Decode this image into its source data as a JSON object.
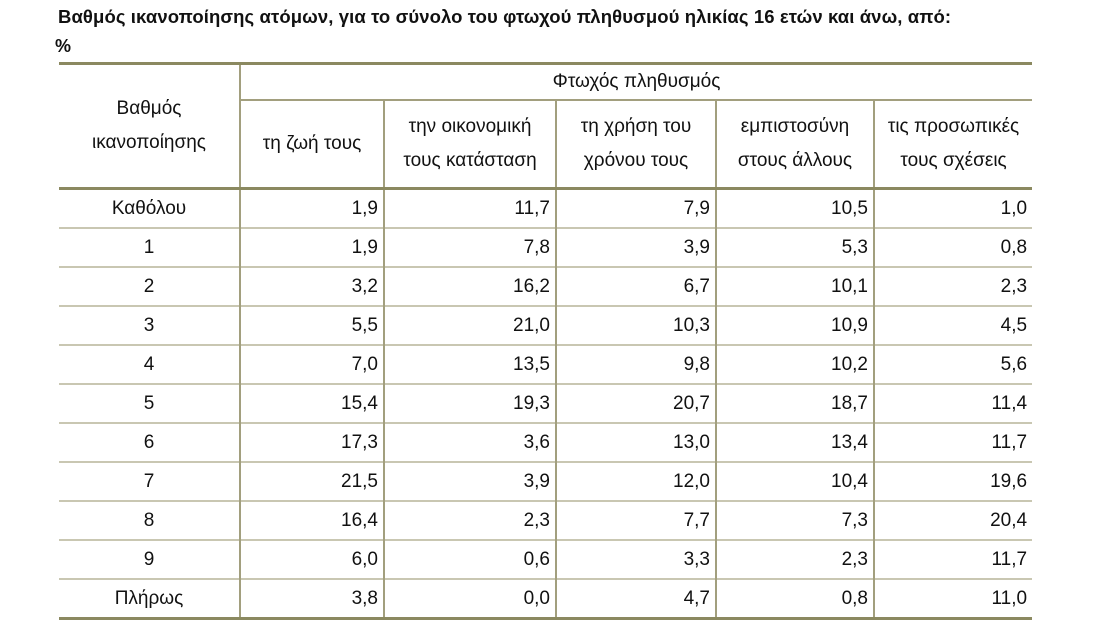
{
  "title": "Βαθμός ικανοποίησης ατόμων, για το σύνολο του φτωχού πληθυσμού ηλικίας 16 ετών και άνω, από:",
  "unit": "%",
  "table": {
    "row_header": "Βαθμός ικανοποίησης",
    "group_header": "Φτωχός πληθυσμός",
    "columns": [
      "τη ζωή τους",
      "την οικονομική τους κατάσταση",
      "τη χρήση του χρόνου τους",
      "εμπιστοσύνη στους άλλους",
      "τις προσωπικές τους σχέσεις"
    ],
    "rows": [
      {
        "label": "Καθόλου",
        "values": [
          "1,9",
          "11,7",
          "7,9",
          "10,5",
          "1,0"
        ]
      },
      {
        "label": "1",
        "values": [
          "1,9",
          "7,8",
          "3,9",
          "5,3",
          "0,8"
        ]
      },
      {
        "label": "2",
        "values": [
          "3,2",
          "16,2",
          "6,7",
          "10,1",
          "2,3"
        ]
      },
      {
        "label": "3",
        "values": [
          "5,5",
          "21,0",
          "10,3",
          "10,9",
          "4,5"
        ]
      },
      {
        "label": "4",
        "values": [
          "7,0",
          "13,5",
          "9,8",
          "10,2",
          "5,6"
        ]
      },
      {
        "label": "5",
        "values": [
          "15,4",
          "19,3",
          "20,7",
          "18,7",
          "11,4"
        ]
      },
      {
        "label": "6",
        "values": [
          "17,3",
          "3,6",
          "13,0",
          "13,4",
          "11,7"
        ]
      },
      {
        "label": "7",
        "values": [
          "21,5",
          "3,9",
          "12,0",
          "10,4",
          "19,6"
        ]
      },
      {
        "label": "8",
        "values": [
          "16,4",
          "2,3",
          "7,7",
          "7,3",
          "20,4"
        ]
      },
      {
        "label": "9",
        "values": [
          "6,0",
          "0,6",
          "3,3",
          "2,3",
          "11,7"
        ]
      },
      {
        "label": "Πλήρως",
        "values": [
          "3,8",
          "0,0",
          "4,7",
          "0,8",
          "11,0"
        ]
      }
    ]
  }
}
